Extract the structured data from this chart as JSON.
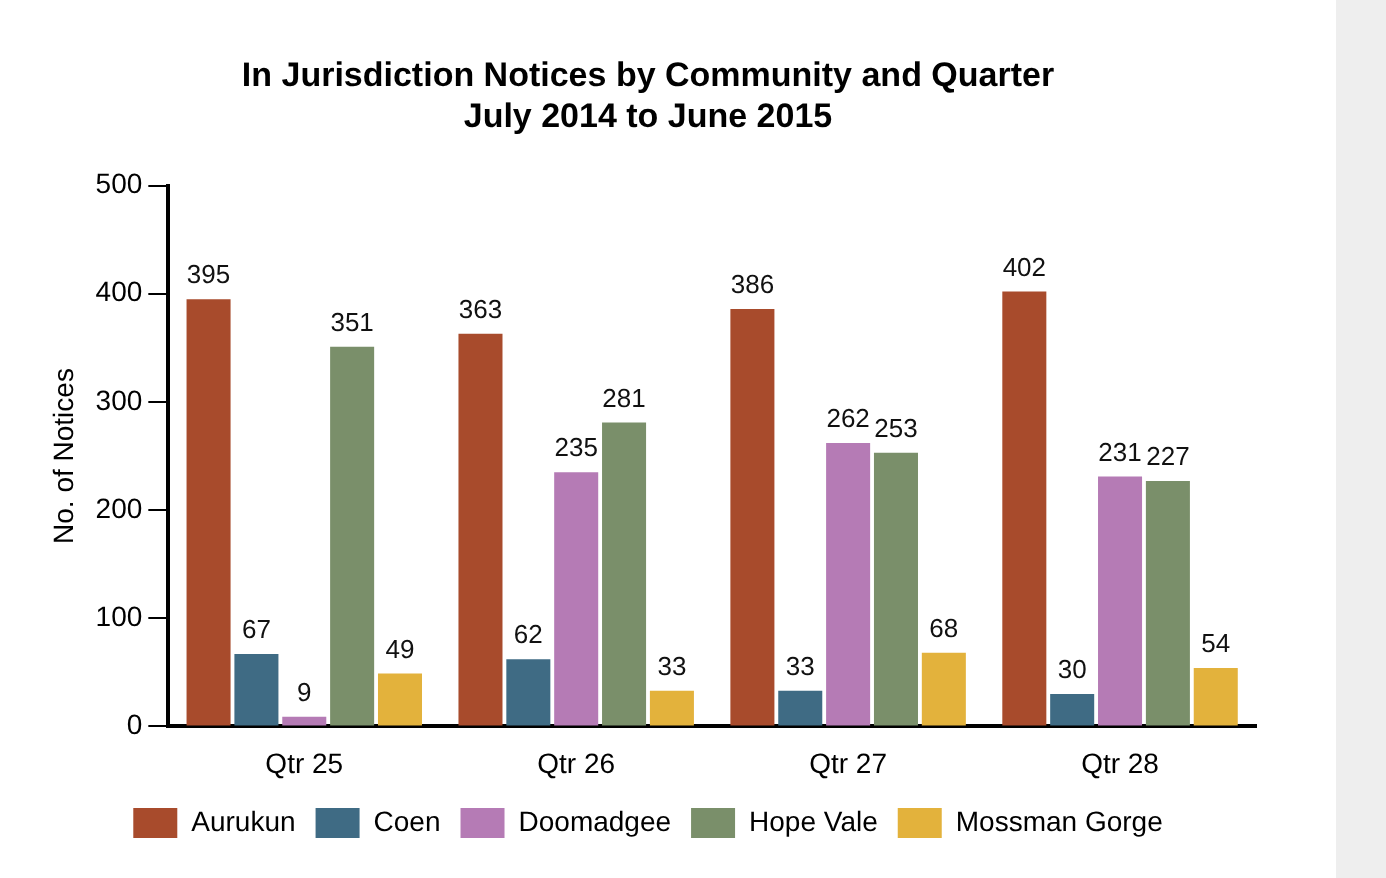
{
  "chart_data": {
    "type": "bar",
    "title": "In Jurisdiction Notices by Community and Quarter",
    "subtitle": "July 2014 to June 2015",
    "ylabel": "No. of Notices",
    "categories": [
      "Qtr 25",
      "Qtr 26",
      "Qtr 27",
      "Qtr 28"
    ],
    "series": [
      {
        "name": "Aurukun",
        "color": "#a84b2c",
        "values": [
          395,
          363,
          386,
          402
        ]
      },
      {
        "name": "Coen",
        "color": "#3f6b84",
        "values": [
          67,
          62,
          33,
          30
        ]
      },
      {
        "name": "Doomadgee",
        "color": "#b57bb5",
        "values": [
          9,
          235,
          262,
          231
        ]
      },
      {
        "name": "Hope Vale",
        "color": "#7a8f6a",
        "values": [
          351,
          281,
          253,
          227
        ]
      },
      {
        "name": "Mossman Gorge",
        "color": "#e3b23c",
        "values": [
          49,
          33,
          68,
          54
        ]
      }
    ],
    "ylim": [
      0,
      500
    ],
    "yticks": [
      0,
      100,
      200,
      300,
      400,
      500
    ],
    "grid": false,
    "legend": "bottom",
    "data_labels": true
  }
}
